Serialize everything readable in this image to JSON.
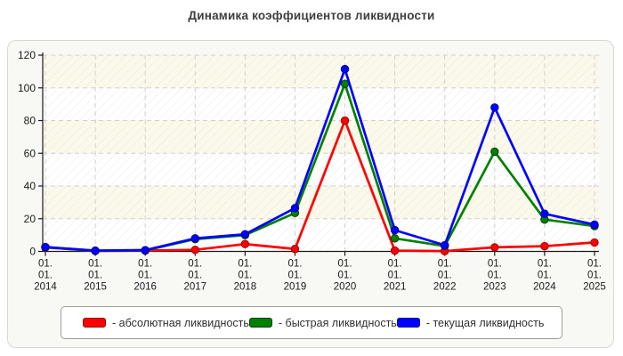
{
  "page": {
    "title": "Динамика коэффициентов ликвидности"
  },
  "legend": {
    "items": [
      {
        "label": "- абсолютная ликвидность",
        "color": "#ff0000",
        "border": "#990000"
      },
      {
        "label": "- быстрая ликвидность",
        "color": "#008000",
        "border": "#003d00"
      },
      {
        "label": "- текущая ликвидность",
        "color": "#0000ff",
        "border": "#000099"
      }
    ]
  },
  "chart_data": {
    "type": "line",
    "title": "Динамика коэффициентов ликвидности",
    "categories": [
      "01.01.2014",
      "01.01.2015",
      "01.01.2016",
      "01.01.2017",
      "01.01.2018",
      "01.01.2019",
      "01.01.2020",
      "01.01.2021",
      "01.01.2022",
      "01.01.2023",
      "01.01.2024",
      "01.01.2025"
    ],
    "series": [
      {
        "name": "абсолютная ликвидность",
        "color": "#ff0000",
        "marker_border": "#990000",
        "values": [
          2.4,
          0.3,
          0.5,
          1.0,
          4.5,
          1.5,
          80.0,
          0.5,
          0.2,
          2.5,
          3.2,
          5.5
        ]
      },
      {
        "name": "быстрая ликвидность",
        "color": "#008000",
        "marker_border": "#003d00",
        "values": [
          2.6,
          0.4,
          0.6,
          7.5,
          10.0,
          23.5,
          102.5,
          8.0,
          3.3,
          61.0,
          19.5,
          15.5
        ]
      },
      {
        "name": "текущая ликвидность",
        "color": "#0000ff",
        "marker_border": "#000099",
        "values": [
          2.7,
          0.5,
          0.8,
          8.0,
          10.5,
          26.5,
          111.5,
          13.0,
          3.8,
          88.0,
          23.0,
          16.4
        ]
      }
    ],
    "xlabel": "",
    "ylabel": "",
    "ylim": [
      0,
      120
    ],
    "yticks": [
      0,
      20,
      40,
      60,
      80,
      100,
      120
    ],
    "grid": "dashed",
    "legend_position": "bottom",
    "plot_style": {
      "band_cream": "#fbf9ea",
      "band_white": "#ffffff",
      "hatch_line": "#e2e2e2",
      "gridline": "#d0d0d0",
      "axis": "#1a1a1a",
      "tick_label": "#1a1a1a"
    }
  }
}
